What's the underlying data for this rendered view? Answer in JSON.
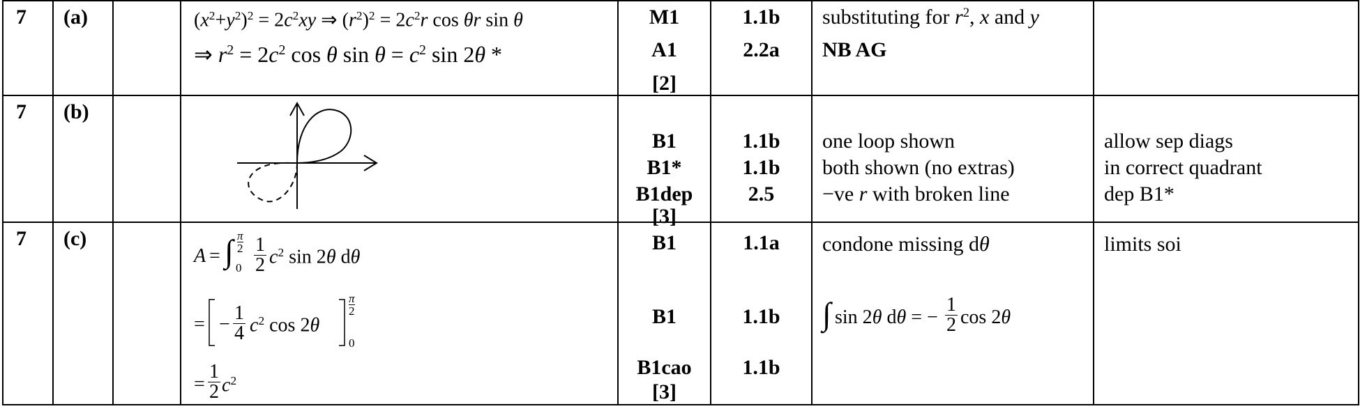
{
  "rows": [
    {
      "question": "7",
      "part": "(a)",
      "answer_lines": [
        "(x² + y²)² = 2c²xy ⇒ (r²)² = 2c²r cos θ r sin θ",
        "⇒ r² = 2c² cos θ sin θ = c² sin 2θ *"
      ],
      "marks": [
        "M1",
        "A1"
      ],
      "total": "[2]",
      "aos": [
        "1.1b",
        "2.2a"
      ],
      "guidance": [
        "substituting for r², x and y",
        "NB AG"
      ],
      "notes": []
    },
    {
      "question": "7",
      "part": "(b)",
      "answer_lines": [],
      "marks": [
        "B1",
        "B1*",
        "B1dep"
      ],
      "total": "[3]",
      "aos": [
        "1.1b",
        "1.1b",
        "2.5"
      ],
      "guidance": [
        "one loop shown",
        "both shown (no extras)",
        "−ve r with broken line"
      ],
      "notes": [
        "allow sep diags",
        "in correct quadrant",
        "dep B1*"
      ]
    },
    {
      "question": "7",
      "part": "(c)",
      "answer_lines": [
        "A = ∫₀^(π/2) ½ c² sin 2θ dθ",
        "= [ −¼ c² cos 2θ ]₀^(π/2)",
        "= ½ c²"
      ],
      "marks": [
        "B1",
        "B1",
        "B1cao"
      ],
      "total": "[3]",
      "aos": [
        "1.1a",
        "1.1b",
        "1.1b"
      ],
      "guidance": [
        "condone missing dθ",
        "∫ sin 2θ dθ = −½ cos 2θ"
      ],
      "notes": [
        "limits soi"
      ]
    }
  ]
}
